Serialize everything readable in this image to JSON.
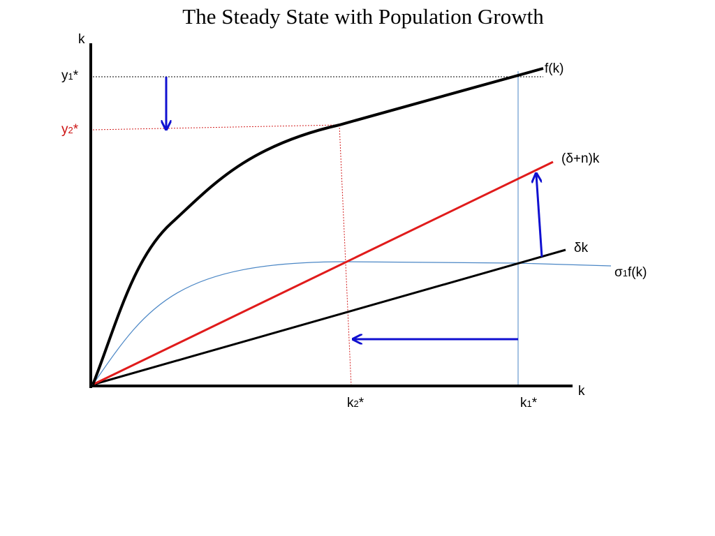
{
  "title": "The Steady State with Population Growth",
  "axes": {
    "y_label": "k",
    "x_label": "k"
  },
  "curves": {
    "production": "f(k)",
    "depreciation_pop": "(δ+n)k",
    "depreciation": "δk",
    "savings": {
      "prefix": "σ",
      "sub": "1",
      "suffix": "f(k)"
    }
  },
  "markers": {
    "y1": {
      "base": "y",
      "sub": "1",
      "star": "*"
    },
    "y2": {
      "base": "y",
      "sub": "2",
      "star": "*"
    },
    "k1": {
      "base": "k",
      "sub": "1",
      "star": "*"
    },
    "k2": {
      "base": "k",
      "sub": "2",
      "star": "*"
    }
  },
  "colors": {
    "axis": "#000000",
    "production": "#000000",
    "depreciation": "#000000",
    "depreciation_pop": "#e01b1b",
    "savings": "#4a86c5",
    "arrows": "#1010d0",
    "guide_red": "#d21e1e",
    "guide_black": "#000000",
    "guide_blue": "#4a86c5",
    "y2_label": "#cc1111"
  }
}
